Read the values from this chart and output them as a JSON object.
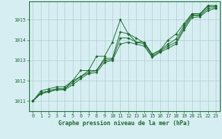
{
  "background_color": "#d6eef2",
  "grid_color": "#aacccc",
  "line_color": "#1a6b2a",
  "title": "Graphe pression niveau de la mer (hPa)",
  "xlim": [
    -0.5,
    23.5
  ],
  "ylim": [
    1010.5,
    1015.9
  ],
  "yticks": [
    1011,
    1012,
    1013,
    1014,
    1015
  ],
  "xticks": [
    0,
    1,
    2,
    3,
    4,
    5,
    6,
    7,
    8,
    9,
    10,
    11,
    12,
    13,
    14,
    15,
    16,
    17,
    18,
    19,
    20,
    21,
    22,
    23
  ],
  "series": [
    [
      1011.0,
      1011.5,
      1011.6,
      1011.7,
      1011.7,
      1012.0,
      1012.5,
      1012.5,
      1013.2,
      1013.2,
      1013.9,
      1015.0,
      1014.3,
      1013.9,
      1013.9,
      1013.3,
      1013.5,
      1014.0,
      1014.3,
      1014.8,
      1015.3,
      1015.3,
      1015.7,
      1015.7
    ],
    [
      1011.0,
      1011.4,
      1011.5,
      1011.6,
      1011.6,
      1012.0,
      1012.2,
      1012.5,
      1012.5,
      1013.1,
      1013.1,
      1014.4,
      1014.3,
      1014.1,
      1013.85,
      1013.3,
      1013.5,
      1013.8,
      1014.05,
      1014.7,
      1015.25,
      1015.25,
      1015.65,
      1015.65
    ],
    [
      1011.0,
      1011.4,
      1011.5,
      1011.6,
      1011.6,
      1011.9,
      1012.2,
      1012.4,
      1012.5,
      1013.0,
      1013.05,
      1014.1,
      1014.1,
      1013.9,
      1013.8,
      1013.2,
      1013.45,
      1013.7,
      1013.9,
      1014.6,
      1015.2,
      1015.2,
      1015.55,
      1015.6
    ],
    [
      1011.0,
      1011.35,
      1011.45,
      1011.55,
      1011.55,
      1011.8,
      1012.1,
      1012.35,
      1012.4,
      1012.9,
      1013.0,
      1013.8,
      1013.9,
      1013.8,
      1013.7,
      1013.15,
      1013.4,
      1013.6,
      1013.8,
      1014.5,
      1015.1,
      1015.15,
      1015.45,
      1015.55
    ]
  ],
  "tick_fontsize": 5,
  "title_fontsize": 6,
  "marker_size": 1.8,
  "linewidth": 0.7
}
